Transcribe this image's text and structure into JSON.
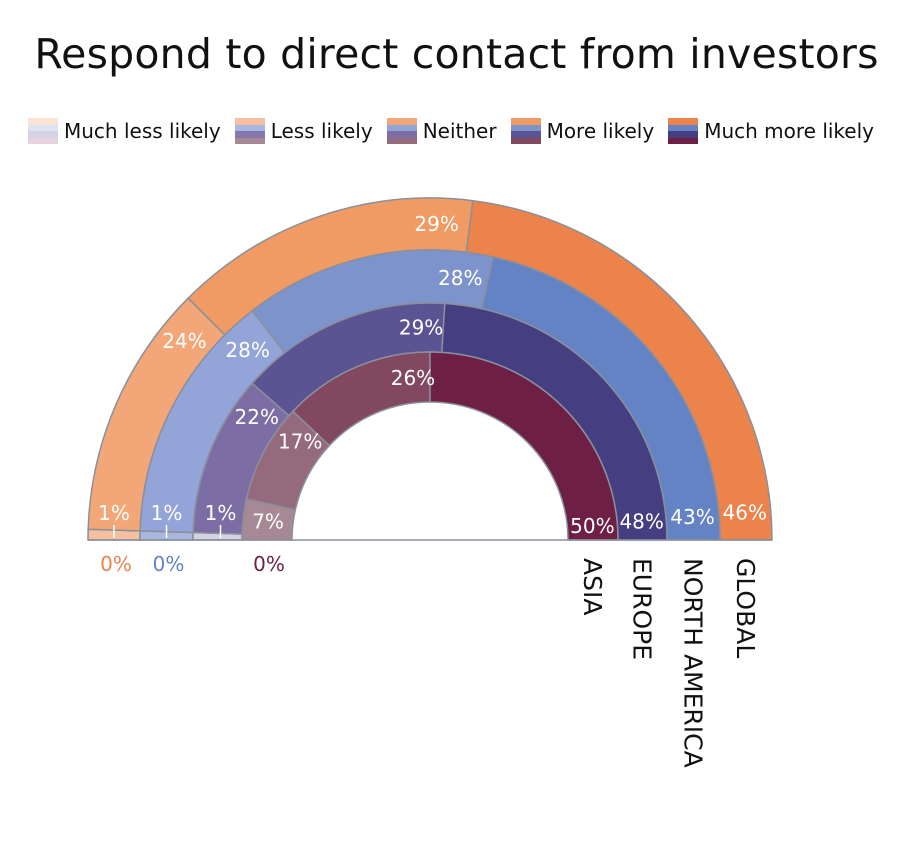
{
  "chart_data": {
    "type": "semi-donut",
    "title": "Respond to direct contact from investors",
    "legend": [
      "Much less likely",
      "Less likely",
      "Neither",
      "More likely",
      "Much more likely"
    ],
    "legend_placement": "top",
    "series": [
      {
        "name": "GLOBAL",
        "values": [
          0,
          1,
          24,
          29,
          46
        ],
        "labels": [
          "0%",
          "1%",
          "24%",
          "29%",
          "46%"
        ]
      },
      {
        "name": "NORTH AMERICA",
        "values": [
          0,
          1,
          28,
          28,
          43
        ],
        "labels": [
          "0%",
          "1%",
          "28%",
          "28%",
          "43%"
        ]
      },
      {
        "name": "EUROPE",
        "values": [
          1,
          0,
          22,
          29,
          48
        ],
        "labels": [
          "1%",
          "",
          "22%",
          "29%",
          "48%"
        ]
      },
      {
        "name": "ASIA",
        "values": [
          0,
          7,
          17,
          26,
          50
        ],
        "labels": [
          "0%",
          "7%",
          "17%",
          "26%",
          "50%"
        ]
      }
    ],
    "colors": {
      "GLOBAL": [
        "#fbe3d5",
        "#f6bf9f",
        "#f3a779",
        "#f09a64",
        "#ec834a"
      ],
      "NORTH AMERICA": [
        "#dde3f2",
        "#a9b6df",
        "#93a4d8",
        "#7d93cc",
        "#6483c4"
      ],
      "EUROPE": [
        "#d6d2e6",
        "#8678ad",
        "#7c6ea4",
        "#5c5392",
        "#453f82"
      ],
      "ASIA": [
        "#e6d3dd",
        "#a78895",
        "#956a7c",
        "#81485f",
        "#6e1f45"
      ]
    },
    "zero_label_colors": {
      "GLOBAL": "#ec834a",
      "NORTH AMERICA": "#6483c4",
      "EUROPE": "#453f82",
      "ASIA": "#6e1f45"
    }
  }
}
